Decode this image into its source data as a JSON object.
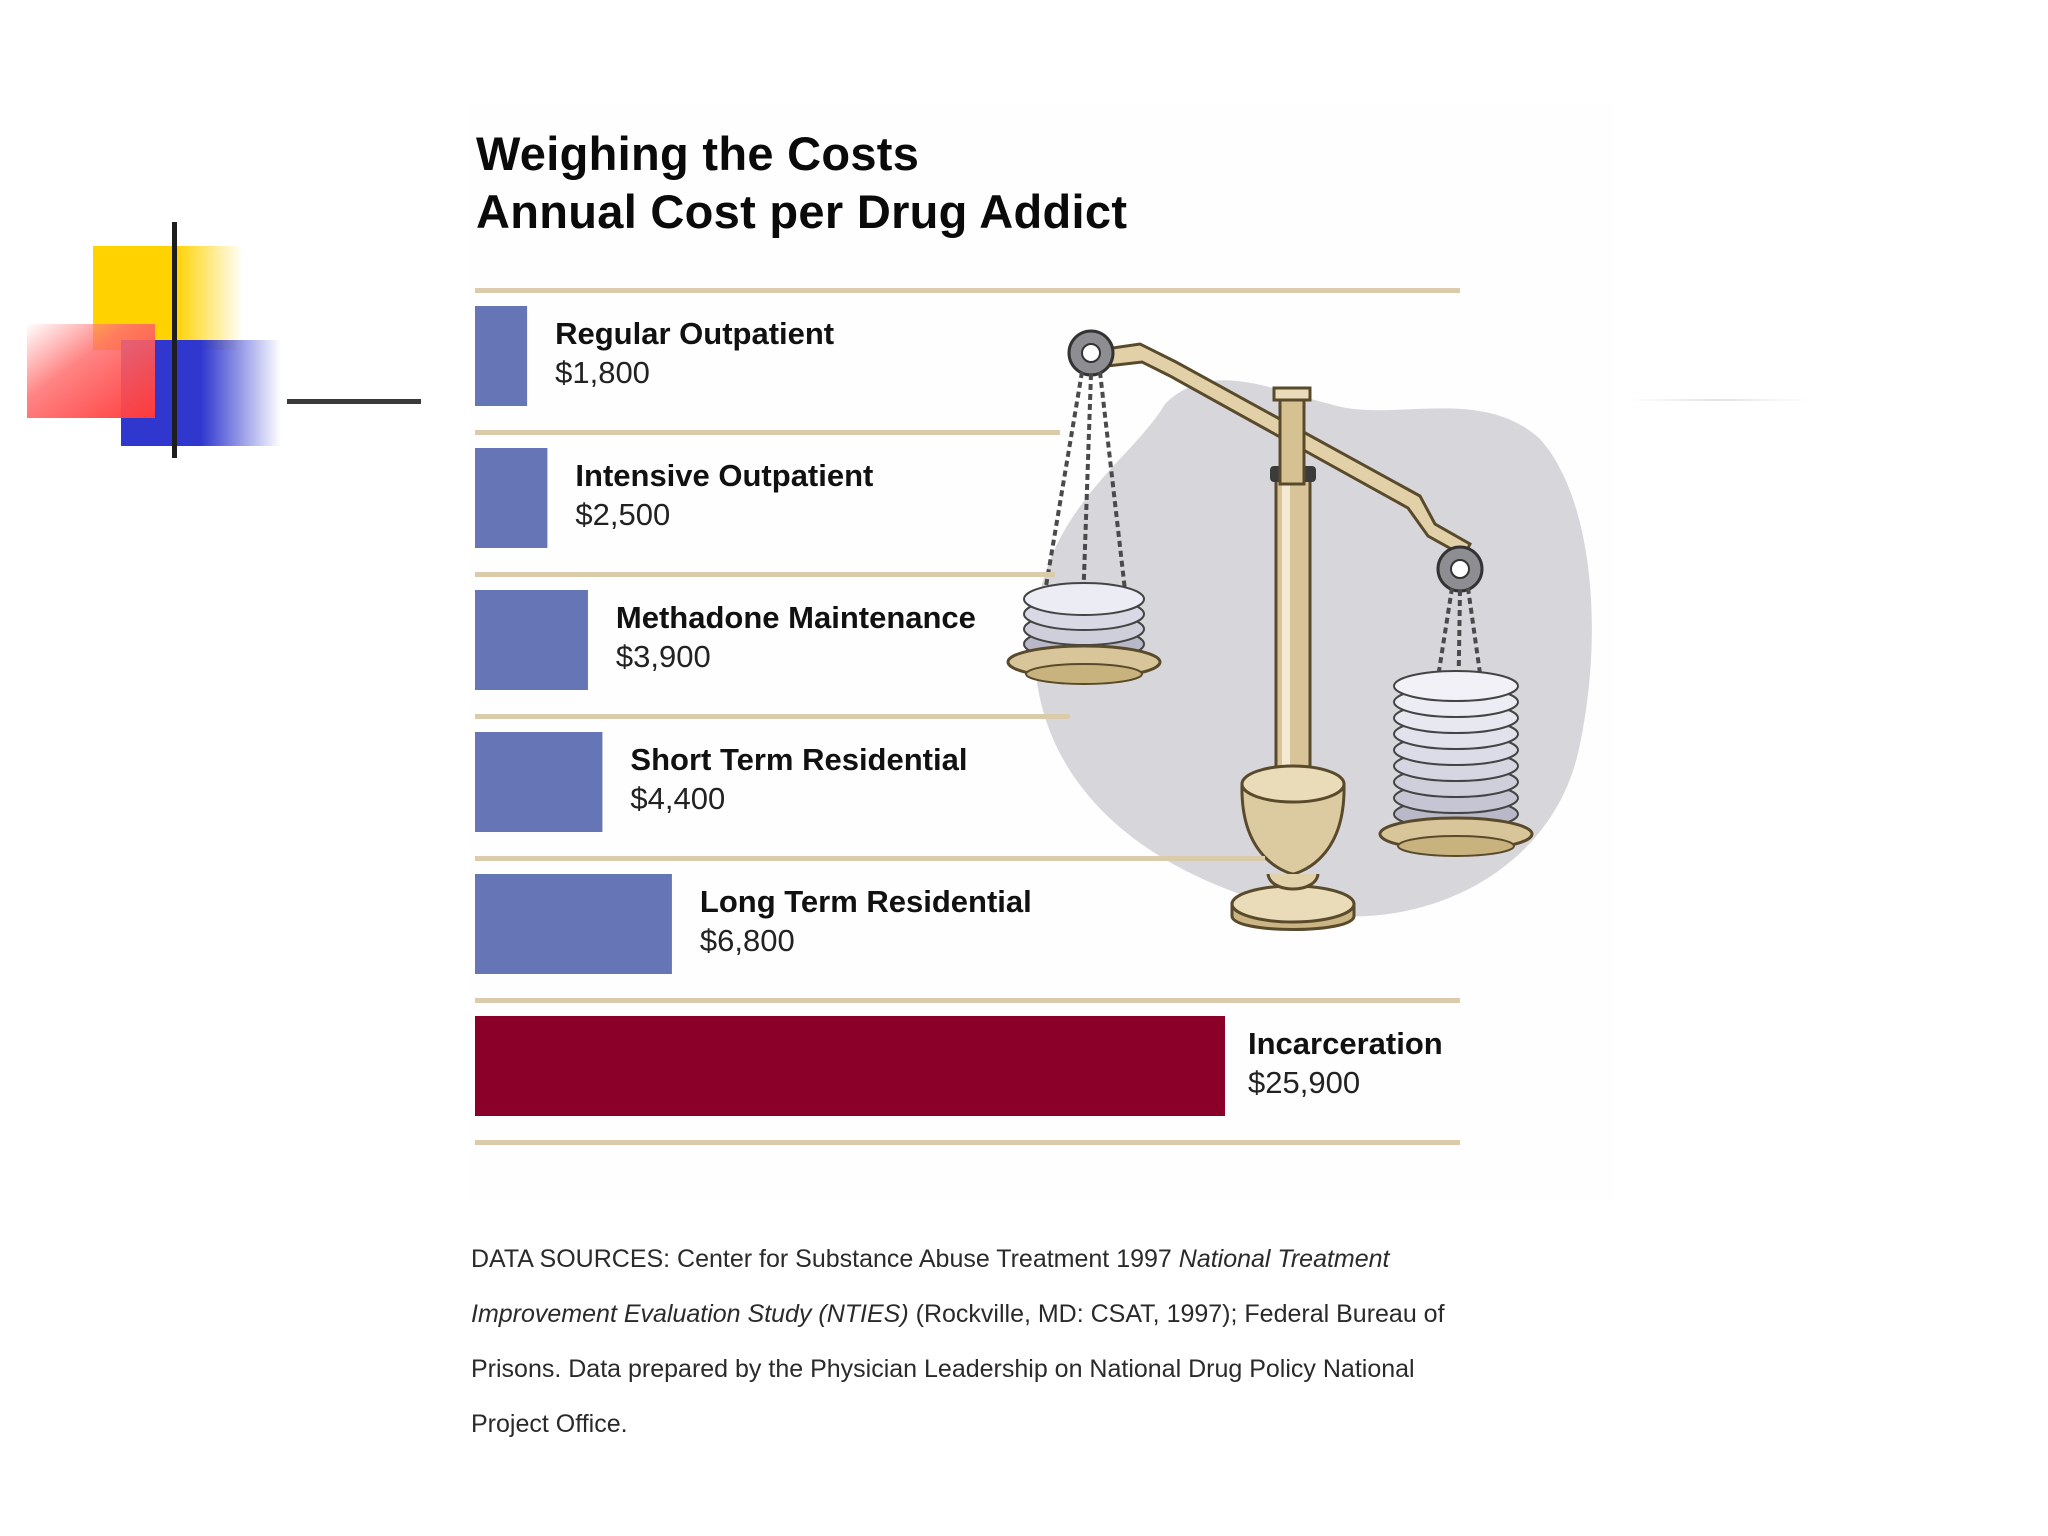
{
  "chart_data": {
    "type": "bar",
    "orientation": "horizontal",
    "title": "Weighing the Costs",
    "subtitle": "Annual Cost per Drug Addict",
    "categories": [
      "Regular Outpatient",
      "Intensive Outpatient",
      "Methadone Maintenance",
      "Short Term Residential",
      "Long Term Residential",
      "Incarceration"
    ],
    "values": [
      1800,
      2500,
      3900,
      4400,
      6800,
      25900
    ],
    "value_labels": [
      "$1,800",
      "$2,500",
      "$3,900",
      "$4,400",
      "$6,800",
      "$25,900"
    ],
    "bar_colors": [
      "#6575b6",
      "#6575b6",
      "#6575b6",
      "#6575b6",
      "#6575b6",
      "#8b0029"
    ],
    "xlim": [
      0,
      25900
    ],
    "grid": false,
    "legend": "none",
    "rule_color": "#dccbaa",
    "illustration": "balance-scale-icon"
  },
  "sources": {
    "prefix": "DATA SOURCES: Center for Substance Abuse Treatment 1997 ",
    "study": "National Treatment Improvement Evaluation Study (NTIES)",
    "suffix": " (Rockville, MD: CSAT, 1997); Federal Bureau of Prisons. Data prepared by the Physician Leadership on National Drug Policy National Project Office."
  }
}
